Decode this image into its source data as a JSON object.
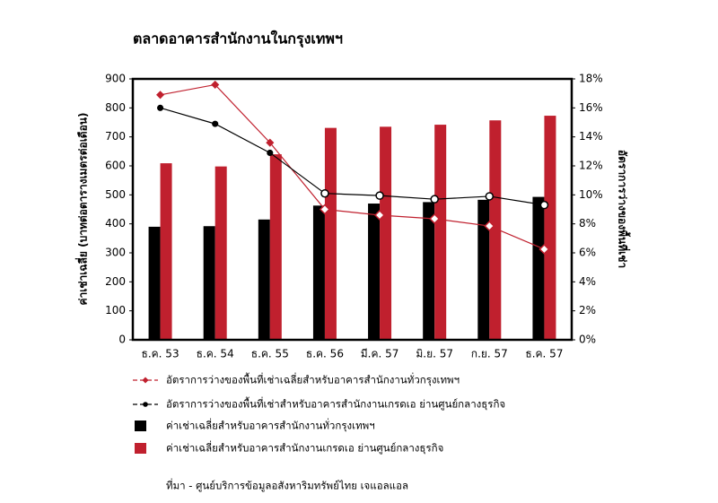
{
  "chart_data": {
    "type": "combo",
    "title": "ตลาดอาคารสำนักงานในกรุงเทพฯ",
    "y_label": "ค่าเช่าเฉลี่ย (บาทต่อตารางเมตรต่อเดือน)",
    "y2_label": "อัตราการว่างของพื้นที่เช่า",
    "source": "ที่มา - ศูนย์บริการข้อมูลอสังหาริมทรัพย์ไทย เจแอลแอล",
    "categories": [
      "ธ.ค. 53",
      "ธ.ค. 54",
      "ธ.ค. 55",
      "ธ.ค. 56",
      "มี.ค. 57",
      "มิ.ย. 57",
      "ก.ย. 57",
      "ธ.ค. 57"
    ],
    "ylim": [
      0,
      900
    ],
    "yticks": [
      0,
      100,
      200,
      300,
      400,
      500,
      600,
      700,
      800,
      900
    ],
    "y2lim": [
      0,
      18
    ],
    "y2ticks": [
      {
        "value": 0,
        "label": "0%"
      },
      {
        "value": 2,
        "label": "2%"
      },
      {
        "value": 4,
        "label": "4%"
      },
      {
        "value": 6,
        "label": "6%"
      },
      {
        "value": 8,
        "label": "8%"
      },
      {
        "value": 10,
        "label": "10%"
      },
      {
        "value": 12,
        "label": "12%"
      },
      {
        "value": 14,
        "label": "14%"
      },
      {
        "value": 16,
        "label": "16%"
      },
      {
        "value": 18,
        "label": "18%"
      }
    ],
    "series": [
      {
        "name": "อัตราการว่างของพื้นที่เช่าเฉลี่ยสำหรับอาคารสำนักงานทั่วกรุงเทพฯ",
        "type": "line",
        "axis": "y2",
        "color": "#c0202e",
        "marker": "diamond",
        "values": [
          16.9,
          17.6,
          13.6,
          9.0,
          8.6,
          8.35,
          7.85,
          6.25
        ]
      },
      {
        "name": "อัตราการว่างของพื้นที่เช่าสำหรับอาคารสำนักงานเกรดเอ ย่านศูนย์กลางธุรกิจ",
        "type": "line",
        "axis": "y2",
        "color": "#000000",
        "marker": "circle",
        "values": [
          16.0,
          14.9,
          12.9,
          10.1,
          9.95,
          9.7,
          9.9,
          9.3
        ]
      },
      {
        "name": "ค่าเช่าเฉลี่ยสำหรับอาคารสำนักงานทั่วกรุงเทพฯ",
        "type": "bar",
        "color": "#000000",
        "values": [
          390,
          392,
          415,
          463,
          470,
          475,
          483,
          493
        ]
      },
      {
        "name": "ค่าเช่าเฉลี่ยสำหรับอาคารสำนักงานเกรดเอ ย่านศูนย์กลางธุรกิจ",
        "type": "bar",
        "color": "#c0202e",
        "values": [
          609,
          598,
          640,
          731,
          735,
          742,
          757,
          773
        ]
      }
    ]
  }
}
